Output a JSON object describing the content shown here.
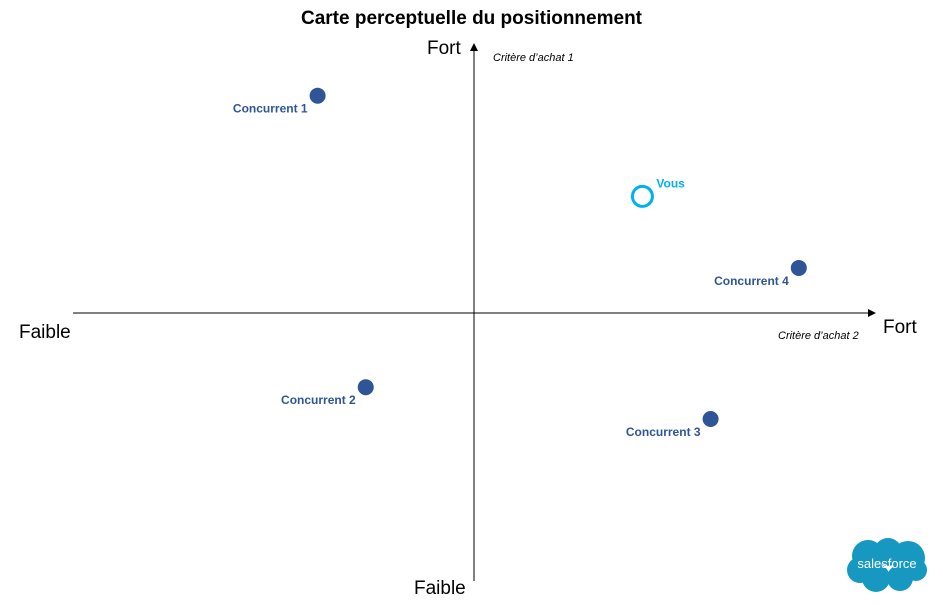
{
  "chart_data": {
    "type": "scatter",
    "title": "Carte perceptuelle du positionnement",
    "xlabel": "Critère d’achat 2",
    "ylabel": "Critère d’achat 1",
    "x_low_label": "Faible",
    "x_high_label": "Fort",
    "y_low_label": "Faible",
    "y_high_label": "Fort",
    "xlim": [
      -1,
      1
    ],
    "ylim": [
      -1,
      1
    ],
    "grid": false,
    "points": [
      {
        "name": "Concurrent 1",
        "x": -0.39,
        "y": 0.82,
        "style": "filled",
        "color": "#2f5597"
      },
      {
        "name": "Concurrent 2",
        "x": -0.27,
        "y": -0.28,
        "style": "filled",
        "color": "#2f5597"
      },
      {
        "name": "Concurrent 3",
        "x": 0.59,
        "y": -0.4,
        "style": "filled",
        "color": "#2f5597"
      },
      {
        "name": "Concurrent 4",
        "x": 0.81,
        "y": 0.17,
        "style": "filled",
        "color": "#2f5597"
      },
      {
        "name": "Vous",
        "x": 0.42,
        "y": 0.44,
        "style": "hollow",
        "color": "#00b0f0"
      }
    ]
  },
  "logo": {
    "text": "salesforce",
    "color": "#1798c1"
  }
}
